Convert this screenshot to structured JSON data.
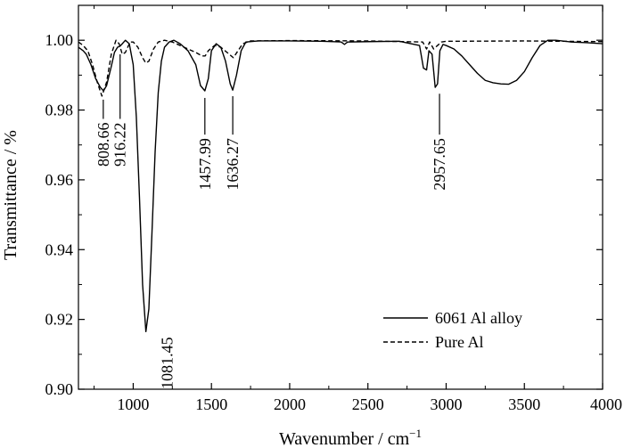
{
  "chart_data": {
    "type": "line",
    "xlabel": "Wavenumber / cm",
    "xlabel_sup": "−1",
    "ylabel": "Transmittance / %",
    "xlim": [
      650,
      4000
    ],
    "ylim": [
      0.9,
      1.01
    ],
    "x_ticks": [
      1000,
      1500,
      2000,
      2500,
      3000,
      3500,
      4000
    ],
    "x_tick_labels": [
      "1000",
      "1500",
      "2000",
      "2500",
      "3000",
      "3500",
      "4000"
    ],
    "y_ticks": [
      0.9,
      0.92,
      0.94,
      0.96,
      0.98,
      1.0
    ],
    "y_tick_labels": [
      "0.90",
      "0.92",
      "0.94",
      "0.96",
      "0.98",
      "1.00"
    ],
    "grid": false,
    "legend_position": "bottom-right",
    "series": [
      {
        "name": "6061 Al alloy",
        "style": "solid",
        "color": "#000000",
        "points": [
          [
            650,
            0.998
          ],
          [
            680,
            0.997
          ],
          [
            700,
            0.996
          ],
          [
            730,
            0.993
          ],
          [
            760,
            0.989
          ],
          [
            790,
            0.9865
          ],
          [
            810,
            0.9855
          ],
          [
            830,
            0.987
          ],
          [
            860,
            0.9925
          ],
          [
            880,
            0.9965
          ],
          [
            900,
            0.998
          ],
          [
            916,
            0.9983
          ],
          [
            930,
            0.999
          ],
          [
            950,
            1.0
          ],
          [
            975,
            0.999
          ],
          [
            1000,
            0.993
          ],
          [
            1020,
            0.978
          ],
          [
            1040,
            0.955
          ],
          [
            1060,
            0.93
          ],
          [
            1081,
            0.9165
          ],
          [
            1100,
            0.923
          ],
          [
            1120,
            0.945
          ],
          [
            1140,
            0.968
          ],
          [
            1160,
            0.985
          ],
          [
            1180,
            0.994
          ],
          [
            1200,
            0.998
          ],
          [
            1230,
            0.9995
          ],
          [
            1260,
            1.0
          ],
          [
            1300,
            0.999
          ],
          [
            1350,
            0.997
          ],
          [
            1400,
            0.993
          ],
          [
            1430,
            0.987
          ],
          [
            1458,
            0.9855
          ],
          [
            1480,
            0.989
          ],
          [
            1500,
            0.997
          ],
          [
            1530,
            0.999
          ],
          [
            1560,
            0.998
          ],
          [
            1590,
            0.994
          ],
          [
            1620,
            0.9875
          ],
          [
            1636,
            0.9857
          ],
          [
            1660,
            0.99
          ],
          [
            1690,
            0.997
          ],
          [
            1720,
            0.9995
          ],
          [
            1800,
            0.9998
          ],
          [
            2000,
            0.9998
          ],
          [
            2200,
            0.9997
          ],
          [
            2330,
            0.9995
          ],
          [
            2350,
            0.9988
          ],
          [
            2370,
            0.9995
          ],
          [
            2500,
            0.9996
          ],
          [
            2700,
            0.9997
          ],
          [
            2830,
            0.9985
          ],
          [
            2855,
            0.992
          ],
          [
            2875,
            0.9915
          ],
          [
            2890,
            0.997
          ],
          [
            2910,
            0.996
          ],
          [
            2930,
            0.9865
          ],
          [
            2945,
            0.9875
          ],
          [
            2960,
            0.997
          ],
          [
            2980,
            0.9988
          ],
          [
            3000,
            0.9985
          ],
          [
            3050,
            0.9975
          ],
          [
            3100,
            0.9955
          ],
          [
            3150,
            0.993
          ],
          [
            3200,
            0.9905
          ],
          [
            3250,
            0.9885
          ],
          [
            3300,
            0.9878
          ],
          [
            3350,
            0.9875
          ],
          [
            3400,
            0.9874
          ],
          [
            3450,
            0.9885
          ],
          [
            3500,
            0.991
          ],
          [
            3550,
            0.995
          ],
          [
            3600,
            0.9985
          ],
          [
            3650,
            1.0
          ],
          [
            3700,
            1.0
          ],
          [
            3800,
            0.9995
          ],
          [
            3900,
            0.9993
          ],
          [
            4000,
            0.999
          ]
        ]
      },
      {
        "name": "Pure Al",
        "style": "dashed",
        "color": "#000000",
        "points": [
          [
            650,
            0.9995
          ],
          [
            680,
            0.9985
          ],
          [
            710,
            0.997
          ],
          [
            740,
            0.993
          ],
          [
            770,
            0.988
          ],
          [
            800,
            0.984
          ],
          [
            830,
            0.988
          ],
          [
            860,
            0.996
          ],
          [
            890,
            1.0
          ],
          [
            910,
            0.999
          ],
          [
            930,
            0.996
          ],
          [
            950,
            0.9965
          ],
          [
            980,
            0.9995
          ],
          [
            1000,
            0.9995
          ],
          [
            1030,
            0.998
          ],
          [
            1060,
            0.995
          ],
          [
            1080,
            0.9935
          ],
          [
            1100,
            0.994
          ],
          [
            1130,
            0.9975
          ],
          [
            1160,
            0.9995
          ],
          [
            1200,
            1.0
          ],
          [
            1250,
            0.9995
          ],
          [
            1300,
            0.9985
          ],
          [
            1350,
            0.9975
          ],
          [
            1400,
            0.9965
          ],
          [
            1440,
            0.9955
          ],
          [
            1460,
            0.9955
          ],
          [
            1480,
            0.997
          ],
          [
            1520,
            0.9985
          ],
          [
            1560,
            0.998
          ],
          [
            1600,
            0.9965
          ],
          [
            1640,
            0.995
          ],
          [
            1670,
            0.997
          ],
          [
            1700,
            0.999
          ],
          [
            1750,
            0.9998
          ],
          [
            2000,
            0.9999
          ],
          [
            2500,
            0.9998
          ],
          [
            2850,
            0.9995
          ],
          [
            2875,
            0.9975
          ],
          [
            2895,
            0.9995
          ],
          [
            2920,
            0.9975
          ],
          [
            2945,
            0.9985
          ],
          [
            2970,
            0.9995
          ],
          [
            3000,
            0.9997
          ],
          [
            3500,
            0.9998
          ],
          [
            4000,
            0.9996
          ]
        ]
      }
    ],
    "annotations": [
      {
        "label": "808.66",
        "x": 808.66,
        "y_top": 0.9845,
        "y_bottom": 0.9795
      },
      {
        "label": "916.22",
        "x": 916.22,
        "y_top": 0.9975,
        "y_bottom": 0.9795
      },
      {
        "label": "1081.45",
        "x": 1081.45,
        "y_top": 0.9165,
        "y_bottom": 0.9165
      },
      {
        "label": "1457.99",
        "x": 1457.99,
        "y_top": 0.985,
        "y_bottom": 0.975
      },
      {
        "label": "1636.27",
        "x": 1636.27,
        "y_top": 0.9855,
        "y_bottom": 0.975
      },
      {
        "label": "2957.65",
        "x": 2957.65,
        "y_top": 0.9862,
        "y_bottom": 0.975
      }
    ]
  }
}
